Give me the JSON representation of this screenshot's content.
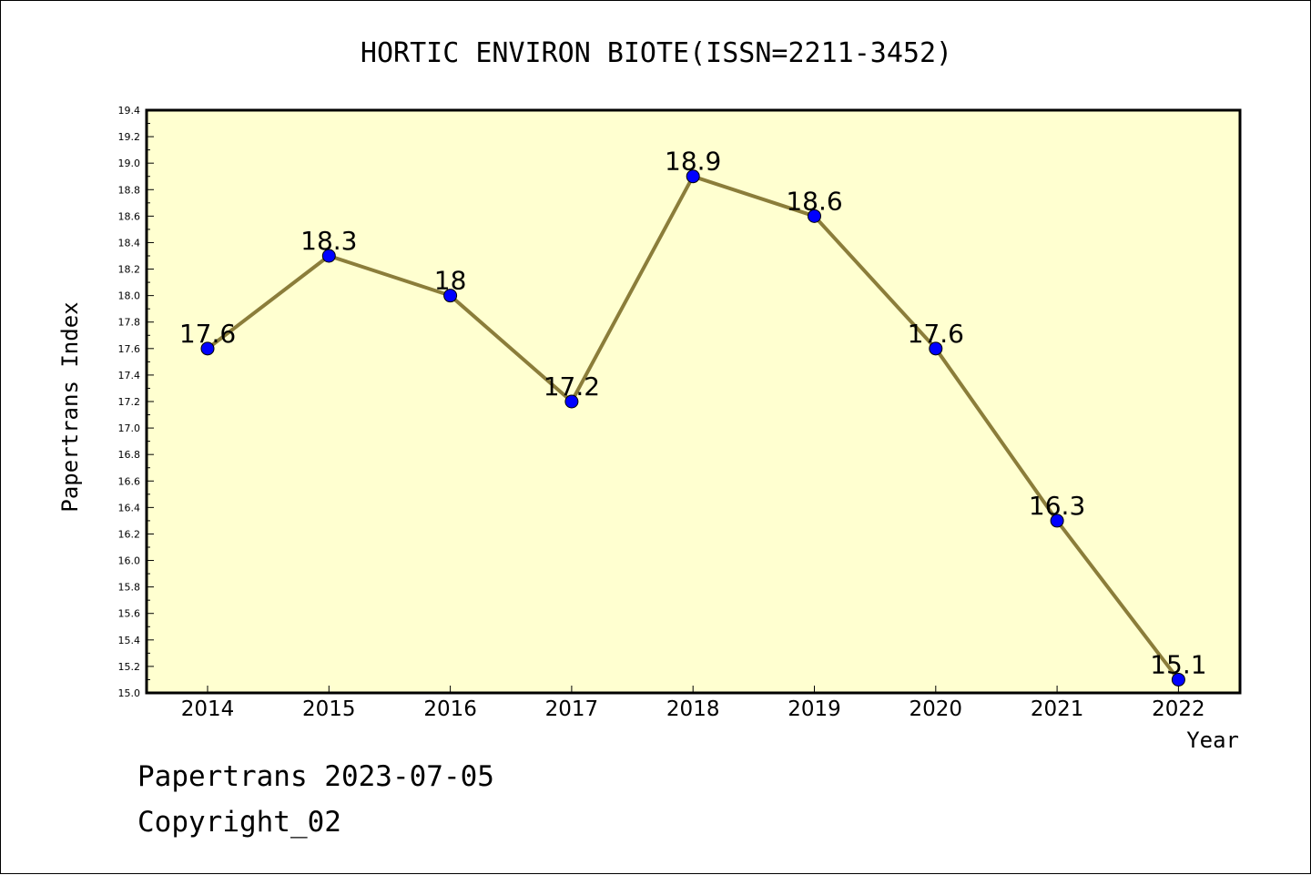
{
  "chart_data": {
    "type": "line",
    "title": "HORTIC ENVIRON BIOTE(ISSN=2211-3452)",
    "xlabel": "Year",
    "ylabel": "Papertrans Index",
    "categories": [
      "2014",
      "2015",
      "2016",
      "2017",
      "2018",
      "2019",
      "2020",
      "2021",
      "2022"
    ],
    "series": [
      {
        "values": [
          17.6,
          18.3,
          18.0,
          17.2,
          18.9,
          18.6,
          17.6,
          16.3,
          15.1
        ],
        "data_labels": [
          "17.6",
          "18.3",
          "18",
          "17.2",
          "18.9",
          "18.6",
          "17.6",
          "16.3",
          "15.1"
        ]
      }
    ],
    "ylim": [
      15.0,
      19.4
    ],
    "yticks": [
      "15.0",
      "15.2",
      "15.4",
      "15.6",
      "15.8",
      "16.0",
      "16.2",
      "16.4",
      "16.6",
      "16.8",
      "17.0",
      "17.2",
      "17.4",
      "17.6",
      "17.8",
      "18.0",
      "18.2",
      "18.4",
      "18.6",
      "18.8",
      "19.0",
      "19.2",
      "19.4"
    ],
    "grid": false,
    "colors": {
      "plot_background": "#ffffd0",
      "line": "#8b7d3a",
      "marker": "#0000ff"
    }
  },
  "footer": {
    "line1": "Papertrans 2023-07-05",
    "line2": "Copyright_02"
  }
}
